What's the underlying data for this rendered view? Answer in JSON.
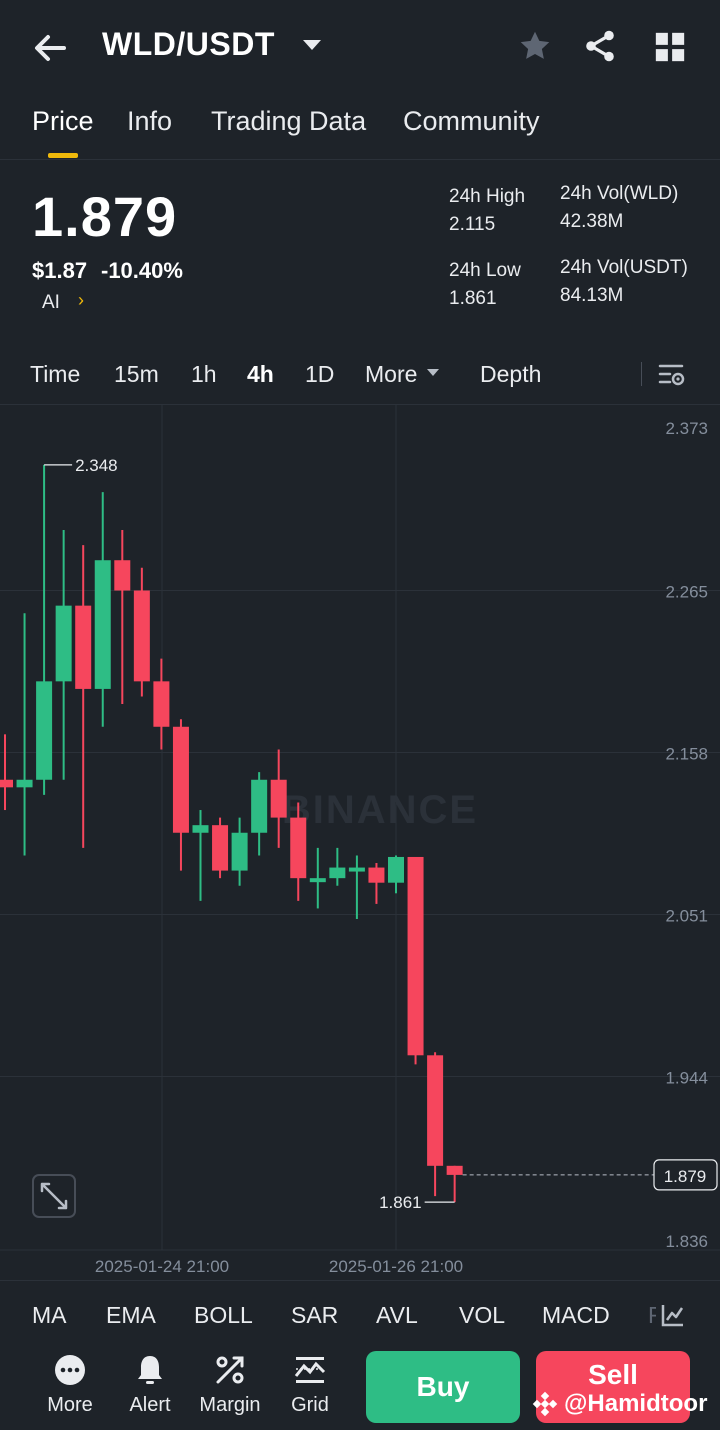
{
  "header": {
    "pair": "WLD/USDT",
    "icons": [
      "back-icon",
      "chevron-down-icon",
      "star-icon",
      "share-icon",
      "grid-icon"
    ]
  },
  "tabs": [
    {
      "label": "Price",
      "active": true
    },
    {
      "label": "Info",
      "active": false
    },
    {
      "label": "Trading Data",
      "active": false
    },
    {
      "label": "Community",
      "active": false
    }
  ],
  "price": {
    "last": "1.879",
    "usd": "$1.87",
    "change": "-10.40%",
    "tag": "AI",
    "tag_chevron": "›"
  },
  "stats": {
    "high_label": "24h High",
    "high_value": "2.115",
    "low_label": "24h Low",
    "low_value": "1.861",
    "vol_base_label": "24h Vol(WLD)",
    "vol_base_value": "42.38M",
    "vol_quote_label": "24h Vol(USDT)",
    "vol_quote_value": "84.13M"
  },
  "intervals": {
    "items": [
      "Time",
      "15m",
      "1h",
      "4h",
      "1D",
      "More"
    ],
    "active": "4h",
    "depth": "Depth"
  },
  "chart_data": {
    "type": "candlestick",
    "watermark": "BINANCE",
    "y_ticks": [
      "2.373",
      "2.265",
      "2.158",
      "2.051",
      "1.944",
      "1.836"
    ],
    "ylim": [
      1.836,
      2.373
    ],
    "x_ticks": [
      "2025-01-24 21:00",
      "2025-01-26 21:00"
    ],
    "max_label": "2.348",
    "min_label": "1.861",
    "current_price_label": "1.879",
    "candles": [
      {
        "o": 2.14,
        "h": 2.17,
        "l": 2.12,
        "c": 2.135
      },
      {
        "o": 2.135,
        "h": 2.25,
        "l": 2.09,
        "c": 2.14
      },
      {
        "o": 2.14,
        "h": 2.348,
        "l": 2.13,
        "c": 2.205
      },
      {
        "o": 2.205,
        "h": 2.305,
        "l": 2.14,
        "c": 2.255
      },
      {
        "o": 2.255,
        "h": 2.295,
        "l": 2.095,
        "c": 2.2
      },
      {
        "o": 2.2,
        "h": 2.33,
        "l": 2.175,
        "c": 2.285
      },
      {
        "o": 2.285,
        "h": 2.305,
        "l": 2.19,
        "c": 2.265
      },
      {
        "o": 2.265,
        "h": 2.28,
        "l": 2.195,
        "c": 2.205
      },
      {
        "o": 2.205,
        "h": 2.22,
        "l": 2.16,
        "c": 2.175
      },
      {
        "o": 2.175,
        "h": 2.18,
        "l": 2.08,
        "c": 2.105
      },
      {
        "o": 2.105,
        "h": 2.12,
        "l": 2.06,
        "c": 2.11
      },
      {
        "o": 2.11,
        "h": 2.115,
        "l": 2.075,
        "c": 2.08
      },
      {
        "o": 2.08,
        "h": 2.115,
        "l": 2.07,
        "c": 2.105
      },
      {
        "o": 2.105,
        "h": 2.145,
        "l": 2.09,
        "c": 2.14
      },
      {
        "o": 2.14,
        "h": 2.16,
        "l": 2.095,
        "c": 2.115
      },
      {
        "o": 2.115,
        "h": 2.125,
        "l": 2.06,
        "c": 2.075
      },
      {
        "o": 2.075,
        "h": 2.095,
        "l": 2.055,
        "c": 2.075
      },
      {
        "o": 2.075,
        "h": 2.095,
        "l": 2.07,
        "c": 2.082
      },
      {
        "o": 2.082,
        "h": 2.09,
        "l": 2.048,
        "c": 2.082
      },
      {
        "o": 2.082,
        "h": 2.085,
        "l": 2.058,
        "c": 2.072
      },
      {
        "o": 2.072,
        "h": 2.09,
        "l": 2.065,
        "c": 2.089
      },
      {
        "o": 2.089,
        "h": 2.089,
        "l": 1.952,
        "c": 1.958
      },
      {
        "o": 1.958,
        "h": 1.96,
        "l": 1.865,
        "c": 1.885
      },
      {
        "o": 1.885,
        "h": 1.885,
        "l": 1.861,
        "c": 1.879
      }
    ]
  },
  "indicators": [
    "MA",
    "EMA",
    "BOLL",
    "SAR",
    "AVL",
    "VOL",
    "MACD",
    "R"
  ],
  "bottom_bar": {
    "items": [
      {
        "label": "More",
        "icon": "more-icon"
      },
      {
        "label": "Alert",
        "icon": "bell-icon"
      },
      {
        "label": "Margin",
        "icon": "margin-icon"
      },
      {
        "label": "Grid",
        "icon": "grid-trading-icon"
      }
    ],
    "buy": "Buy",
    "sell": "Sell"
  },
  "watermark_user": "@Hamidtoor",
  "colors": {
    "up": "#2ebd85",
    "down": "#f6465d",
    "accent": "#f0b90b",
    "bg": "#1e2329"
  }
}
